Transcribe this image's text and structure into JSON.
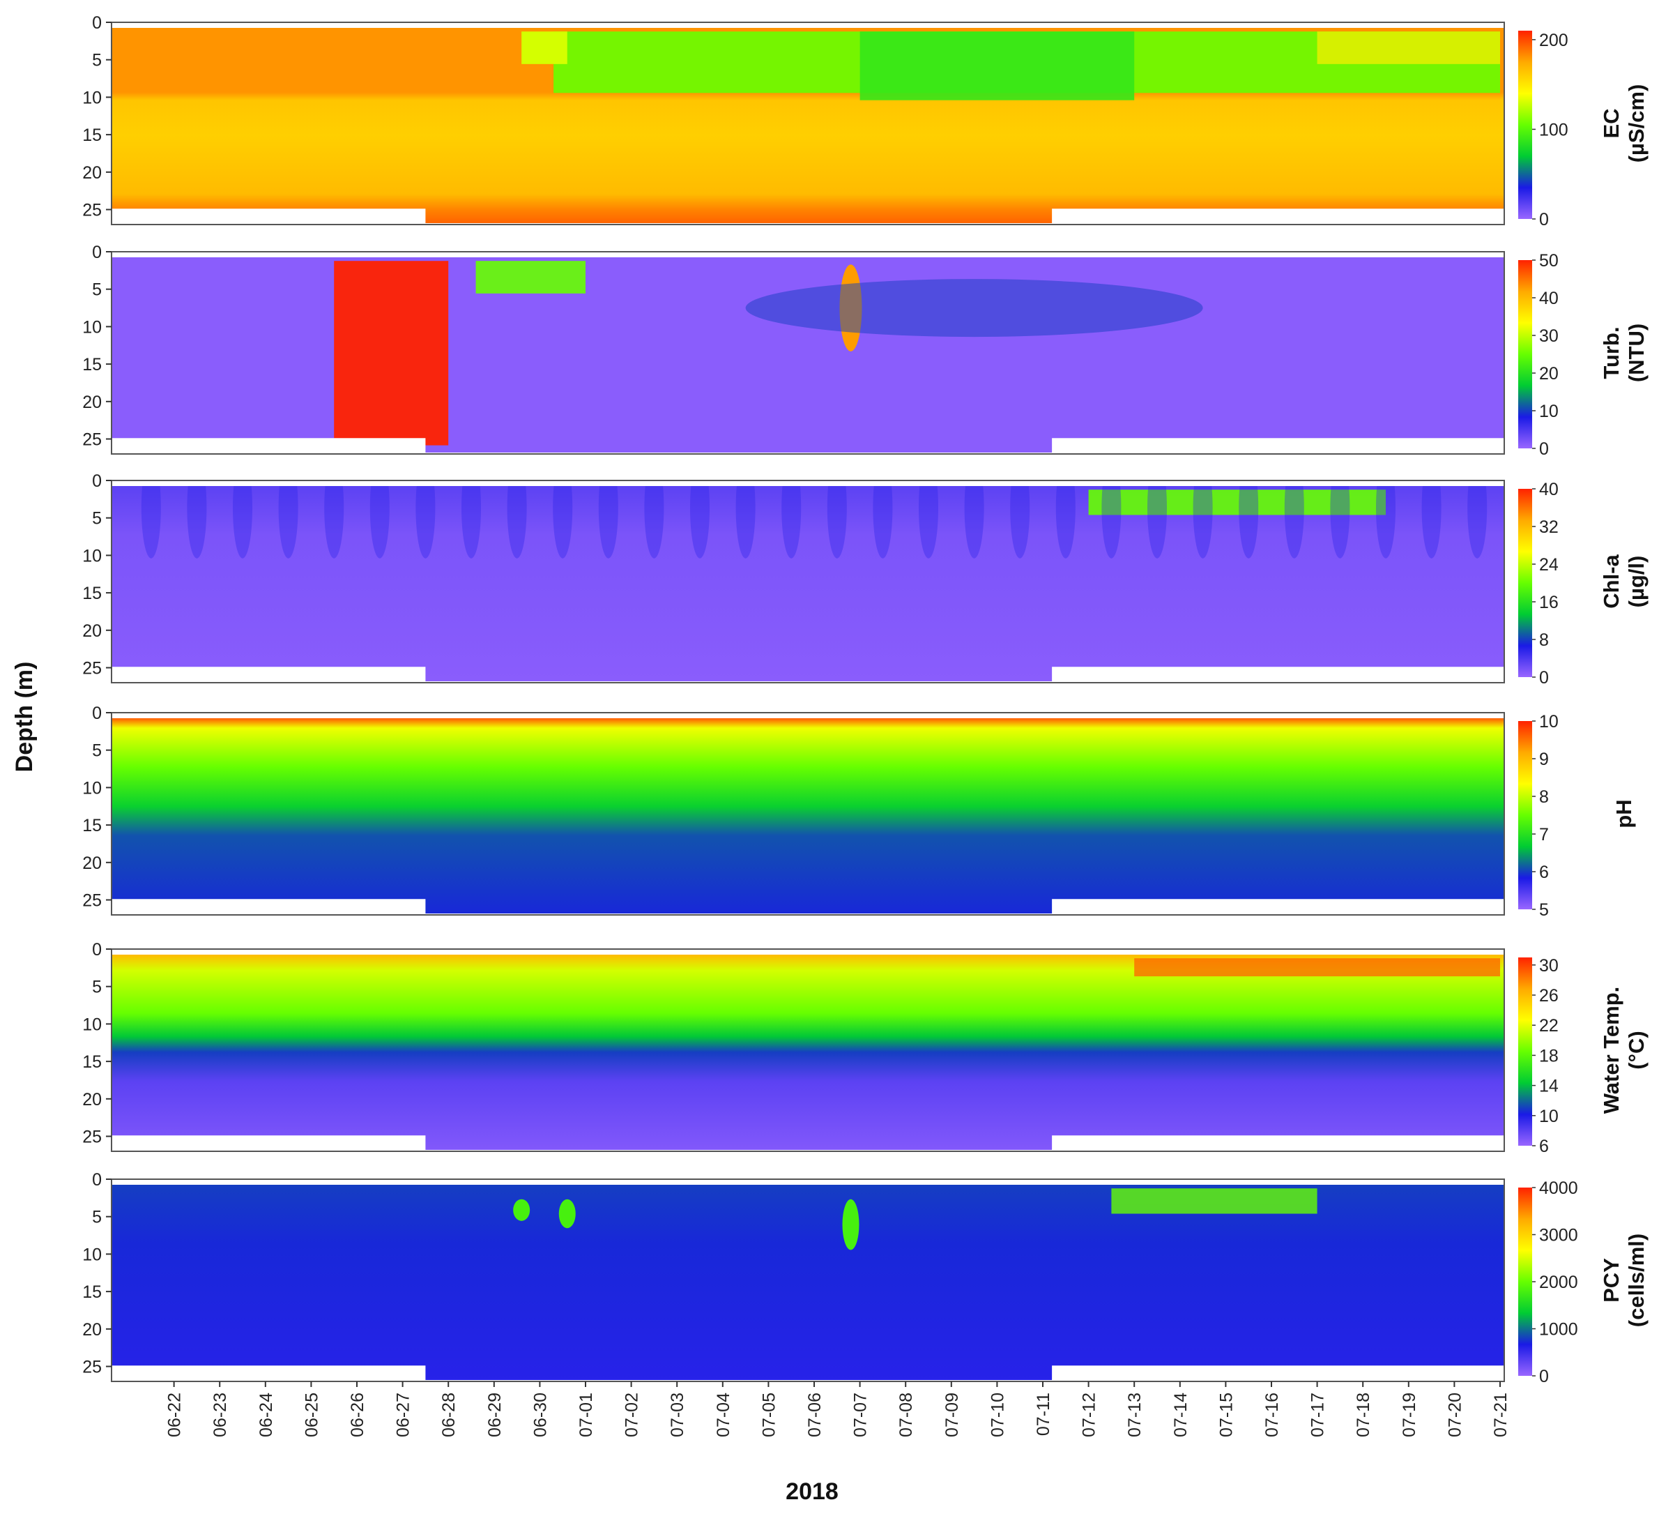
{
  "chart_data": {
    "type": "heatmap",
    "title": "",
    "xlabel": "2018",
    "ylabel": "Depth (m)",
    "x_ticks": [
      "06-22",
      "06-23",
      "06-24",
      "06-25",
      "06-26",
      "06-27",
      "06-28",
      "06-29",
      "06-30",
      "07-01",
      "07-02",
      "07-03",
      "07-04",
      "07-05",
      "07-06",
      "07-07",
      "07-08",
      "07-09",
      "07-10",
      "07-11",
      "07-12",
      "07-13",
      "07-14",
      "07-15",
      "07-16",
      "07-17",
      "07-18",
      "07-19",
      "07-20",
      "07-21"
    ],
    "xlim": [
      "2018-06-21",
      "2018-07-21"
    ],
    "ylim": [
      27,
      0
    ],
    "y_ticks": [
      0,
      5,
      10,
      15,
      20,
      25
    ],
    "colormap": [
      "#9966ff",
      "#1a1ae6",
      "#00cc33",
      "#66ff00",
      "#ffff00",
      "#ffaa00",
      "#ff2200"
    ],
    "panels": [
      {
        "label": [
          "EC",
          "(µS/cm)"
        ],
        "colorbar_ticks": [
          0,
          100,
          200
        ],
        "clim": [
          0,
          210
        ],
        "summary": "Surface layer (0-9 m) ~180 µS/cm until 06-29, drops to 60-120 µS/cm after 06-30 with strongest dilution near 07-07; layer below 10 m ~150-160 µS/cm; bottom (23-26 m) ~180-195 µS/cm"
      },
      {
        "label": [
          "Turb.",
          "(NTU)"
        ],
        "colorbar_ticks": [
          0,
          10,
          20,
          30,
          40,
          50
        ],
        "clim": [
          0,
          50
        ],
        "summary": "Background ~2 NTU; spike >50 NTU throughout water column 06-26 to 06-28; 20-40 NTU near surface 06-29 to 07-01; plume ~45 NTU at 5-10 m on 07-07 decaying to ~8 NTU by 07-12"
      },
      {
        "label": [
          "Chl-a",
          "(µg/l)"
        ],
        "colorbar_ticks": [
          0,
          8,
          16,
          24,
          32,
          40
        ],
        "clim": [
          0,
          40
        ],
        "summary": "Mostly 0-5 µg/l; diel oscillations in upper 10 m; surface bloom 20-30 µg/l from 07-13 to 07-18"
      },
      {
        "label": [
          "pH",
          ""
        ],
        "colorbar_ticks": [
          5,
          6,
          7,
          8,
          9,
          10
        ],
        "clim": [
          5,
          10
        ],
        "summary": "Surface ~9-10, 2-10 m ~7.5-8.5, 12-15 m ~6.5, below 15 m ~6.0"
      },
      {
        "label": [
          "Water Temp.",
          "(°C)"
        ],
        "colorbar_ticks": [
          6,
          10,
          14,
          18,
          22,
          26,
          30
        ],
        "clim": [
          6,
          31
        ],
        "summary": "Surface ~24-29 °C warming toward 07-21; thermocline at ~12-15 m (~10 °C); bottom ~6-8 °C"
      },
      {
        "label": [
          "PCY",
          "(cells/ml)"
        ],
        "colorbar_ticks": [
          0,
          1000,
          2000,
          3000,
          4000
        ],
        "clim": [
          0,
          4000
        ],
        "summary": "Background ~700-900 cells/ml; peaks ~1800-2200 near 06-30, 07-01 and 07-07 at 2-8 m; surface bloom ~2000-2400 from 07-13 to 07-17 with diel oscillations"
      }
    ],
    "legend": "colorbars at right of each panel"
  }
}
